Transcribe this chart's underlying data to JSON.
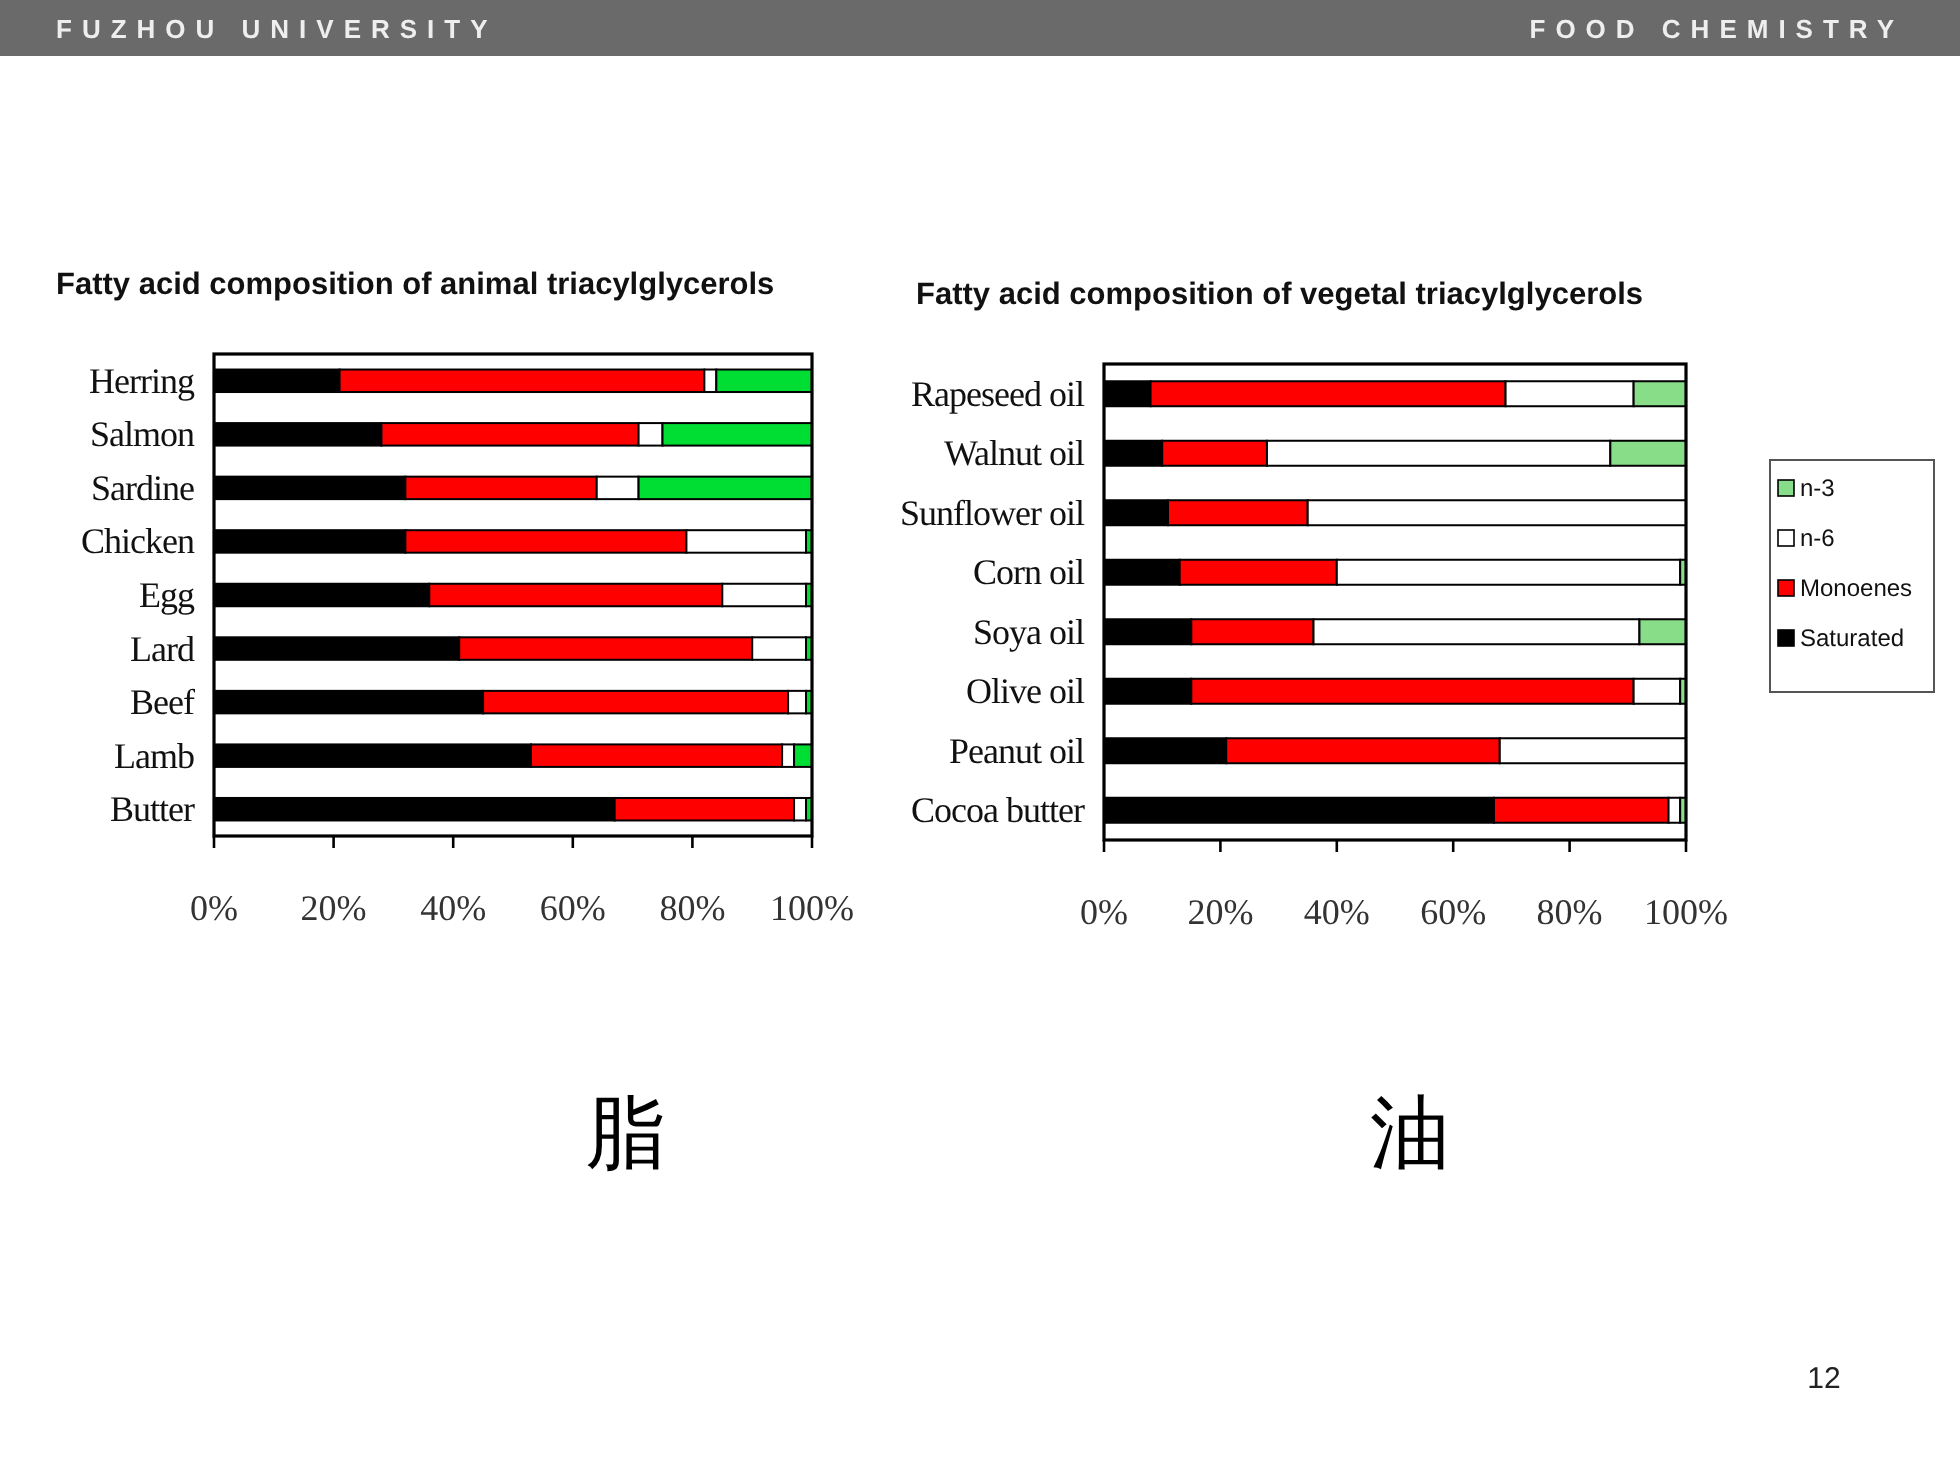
{
  "chart_data": [
    {
      "type": "bar",
      "orientation": "horizontal",
      "stacked": true,
      "title": "Fatty acid composition of animal triacylglycerols",
      "categories": [
        "Herring",
        "Salmon",
        "Sardine",
        "Chicken",
        "Egg",
        "Lard",
        "Beef",
        "Lamb",
        "Butter"
      ],
      "series": [
        {
          "color": "#000000",
          "values": [
            21,
            28,
            32,
            32,
            36,
            41,
            45,
            53,
            67
          ]
        },
        {
          "color": "#ff0000",
          "values": [
            61,
            43,
            32,
            47,
            49,
            49,
            51,
            42,
            30
          ]
        },
        {
          "color": "#ffffff",
          "values": [
            2,
            4,
            7,
            20,
            14,
            9,
            3,
            2,
            2
          ]
        },
        {
          "color": "#00dd33",
          "values": [
            16,
            25,
            29,
            1,
            1,
            1,
            1,
            3,
            1
          ]
        }
      ],
      "xlim": [
        0,
        100
      ],
      "xticks": [
        {
          "value": 0,
          "label": "0%"
        },
        {
          "value": 20,
          "label": "20%"
        },
        {
          "value": 40,
          "label": "40%"
        },
        {
          "value": 60,
          "label": "60%"
        },
        {
          "value": 80,
          "label": "80%"
        },
        {
          "value": 100,
          "label": "100%"
        }
      ],
      "annotations": [
        "FUZHOU UNIVERSITY",
        "脂"
      ]
    },
    {
      "type": "bar",
      "orientation": "horizontal",
      "stacked": true,
      "title": "Fatty acid composition of vegetal triacylglycerols",
      "categories": [
        "Rapeseed oil",
        "Walnut oil",
        "Sunflower oil",
        "Corn oil",
        "Soya oil",
        "Olive oil",
        "Peanut oil",
        "Cocoa butter"
      ],
      "series": [
        {
          "name": "Saturated",
          "color": "#000000",
          "values": [
            8,
            10,
            11,
            13,
            15,
            15,
            21,
            67
          ]
        },
        {
          "name": "Monoenes",
          "color": "#ff0000",
          "values": [
            61,
            18,
            24,
            27,
            21,
            76,
            47,
            30
          ]
        },
        {
          "name": "n-6",
          "color": "#ffffff",
          "values": [
            22,
            59,
            65,
            59,
            56,
            8,
            32,
            2
          ]
        },
        {
          "name": "n-3",
          "color": "#88dd88",
          "values": [
            9,
            13,
            0,
            1,
            8,
            1,
            0,
            1
          ]
        }
      ],
      "xlim": [
        0,
        100
      ],
      "xticks": [
        {
          "value": 0,
          "label": "0%"
        },
        {
          "value": 20,
          "label": "20%"
        },
        {
          "value": 40,
          "label": "40%"
        },
        {
          "value": 60,
          "label": "60%"
        },
        {
          "value": 80,
          "label": "80%"
        },
        {
          "value": 100,
          "label": "100%"
        }
      ],
      "legend": "right",
      "annotations": [
        "FOOD CHEMISTRY",
        "油",
        "12"
      ]
    }
  ]
}
